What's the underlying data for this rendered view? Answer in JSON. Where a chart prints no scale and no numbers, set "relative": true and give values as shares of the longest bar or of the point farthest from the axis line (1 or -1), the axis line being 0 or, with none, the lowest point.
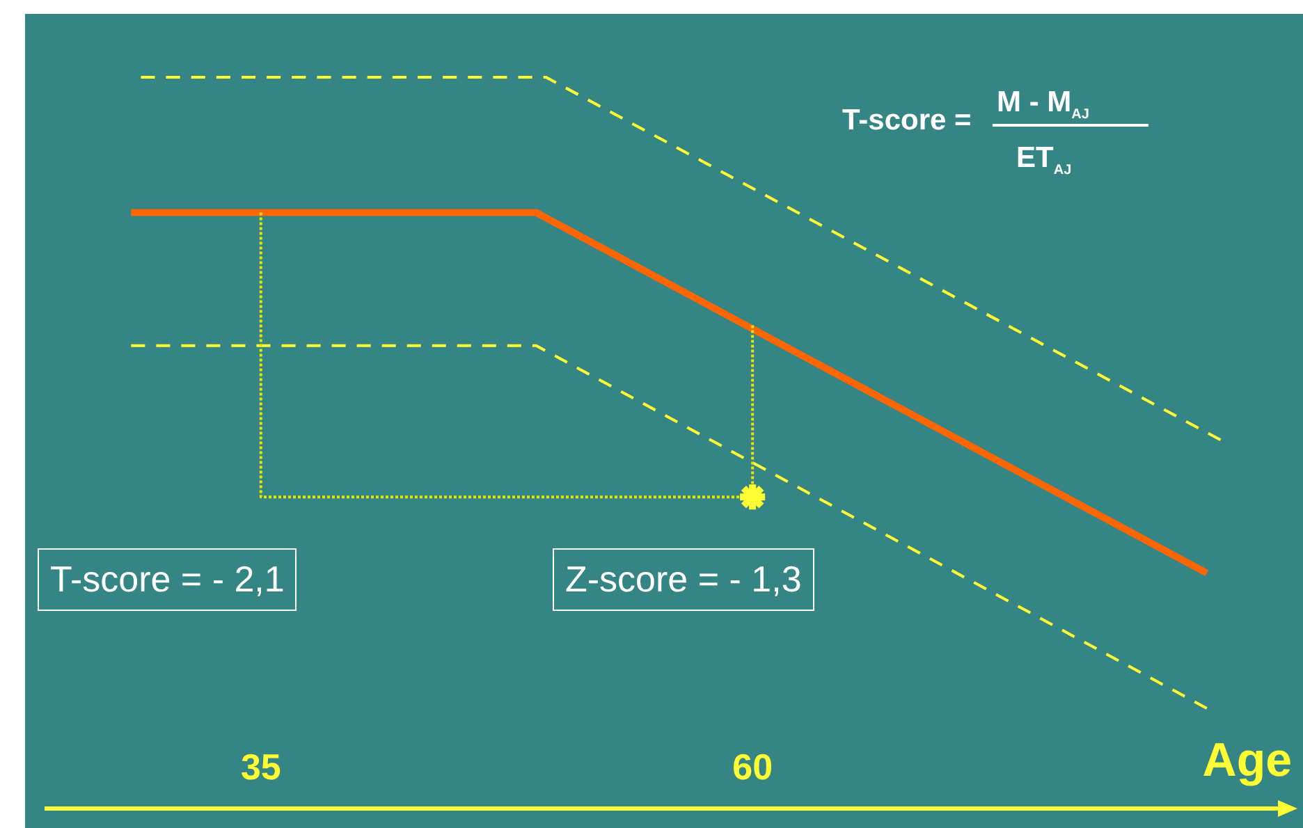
{
  "chart_data": {
    "type": "line",
    "relative": true,
    "xlabel": "Age",
    "xlim": [
      24,
      87
    ],
    "xticks": [
      35,
      60
    ],
    "tick_labels": "x",
    "grid": false,
    "legend": false,
    "annotations": [
      "T-score =",
      "M - M$_{AJ}$",
      "ET$_{AJ}$",
      "T-score = - 2,1",
      "Z-score = - 1,3"
    ],
    "series": [
      {
        "color": "#ffff33",
        "line_style": "dashed",
        "marker": "none",
        "x": [
          28.9,
          49.5,
          83.8
        ],
        "values": [
          1,
          1,
          0.504
        ]
      },
      {
        "color": "#ff6600",
        "line_style": "solid",
        "marker": "none",
        "x": [
          28.4,
          49,
          83.1
        ],
        "values": [
          0.815,
          0.815,
          0.322
        ]
      },
      {
        "color": "#ffff33",
        "line_style": "dashed",
        "marker": "none",
        "x": [
          28.4,
          49,
          83.1
        ],
        "values": [
          0.633,
          0.633,
          0.137
        ]
      },
      {
        "color": "#e6e600",
        "line_style": "dotted",
        "marker": "none",
        "x": [
          35,
          35,
          60,
          60
        ],
        "values": [
          0.815,
          0.426,
          0.426,
          0.661
        ]
      },
      {
        "type": "scatter",
        "color": "#ffff33",
        "marker": "cross",
        "x": [
          60
        ],
        "values": [
          0.426
        ]
      }
    ]
  }
}
